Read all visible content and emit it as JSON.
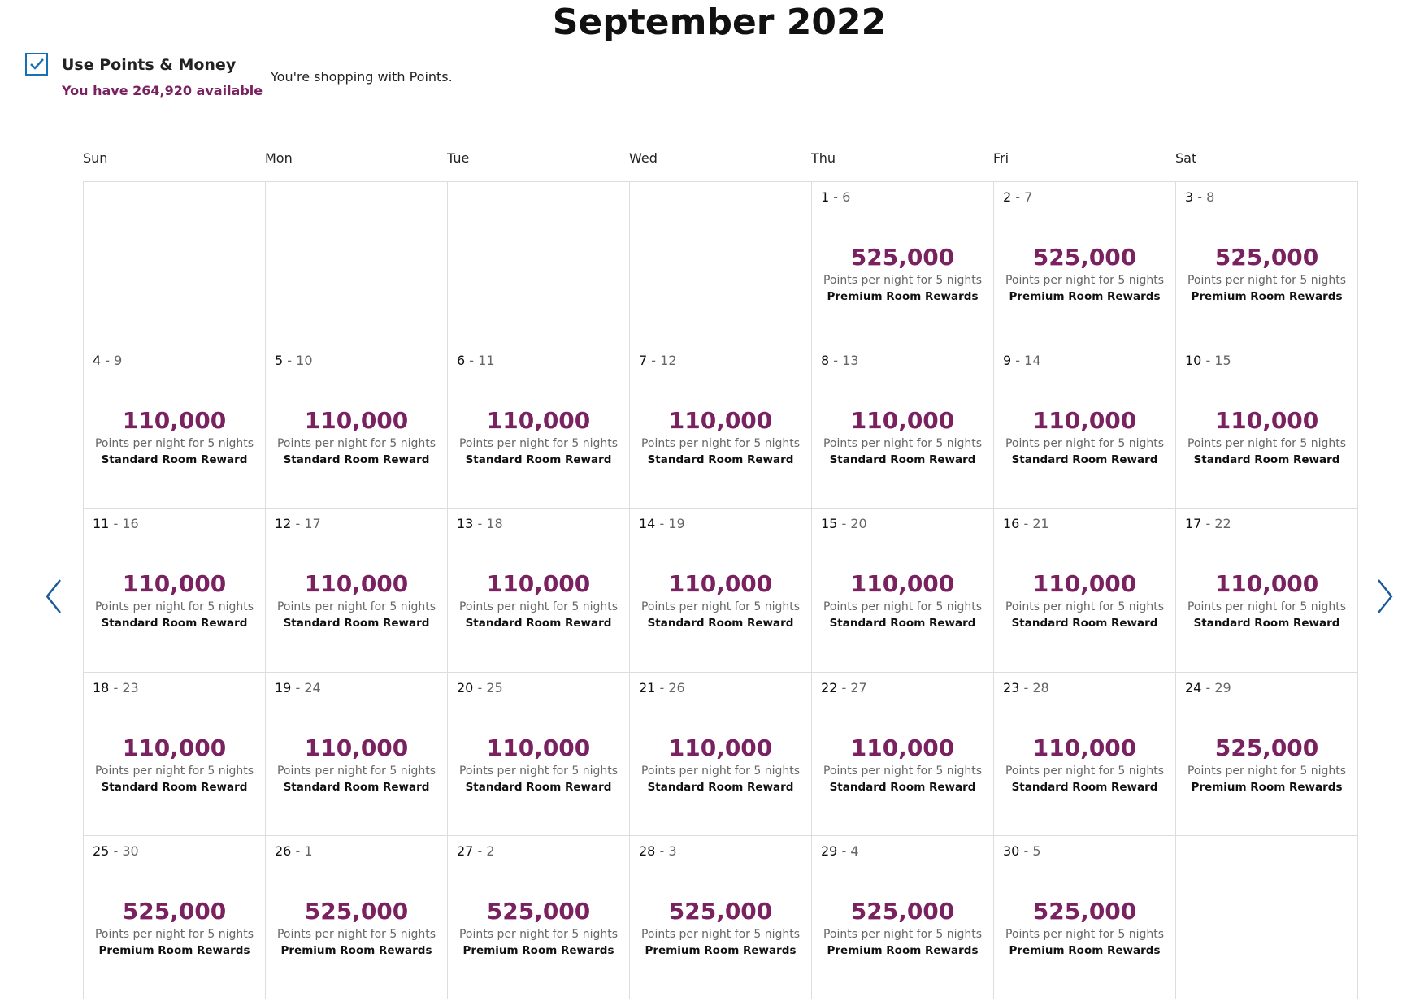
{
  "header": {
    "title": "September 2022",
    "checkbox_label": "Use Points & Money",
    "available": "You have 264,920 available",
    "note": "You're shopping with Points."
  },
  "calendar": {
    "separator": "-",
    "weekdays": [
      "Sun",
      "Mon",
      "Tue",
      "Wed",
      "Thu",
      "Fri",
      "Sat"
    ],
    "weeks": [
      [
        null,
        null,
        null,
        null,
        {
          "start": "1",
          "end": "6",
          "price": "525,000",
          "unit": "Points per night for 5 nights",
          "room": "Premium Room Rewards"
        },
        {
          "start": "2",
          "end": "7",
          "price": "525,000",
          "unit": "Points per night for 5 nights",
          "room": "Premium Room Rewards"
        },
        {
          "start": "3",
          "end": "8",
          "price": "525,000",
          "unit": "Points per night for 5 nights",
          "room": "Premium Room Rewards"
        }
      ],
      [
        {
          "start": "4",
          "end": "9",
          "price": "110,000",
          "unit": "Points per night for 5 nights",
          "room": "Standard Room Reward"
        },
        {
          "start": "5",
          "end": "10",
          "price": "110,000",
          "unit": "Points per night for 5 nights",
          "room": "Standard Room Reward"
        },
        {
          "start": "6",
          "end": "11",
          "price": "110,000",
          "unit": "Points per night for 5 nights",
          "room": "Standard Room Reward"
        },
        {
          "start": "7",
          "end": "12",
          "price": "110,000",
          "unit": "Points per night for 5 nights",
          "room": "Standard Room Reward"
        },
        {
          "start": "8",
          "end": "13",
          "price": "110,000",
          "unit": "Points per night for 5 nights",
          "room": "Standard Room Reward"
        },
        {
          "start": "9",
          "end": "14",
          "price": "110,000",
          "unit": "Points per night for 5 nights",
          "room": "Standard Room Reward"
        },
        {
          "start": "10",
          "end": "15",
          "price": "110,000",
          "unit": "Points per night for 5 nights",
          "room": "Standard Room Reward"
        }
      ],
      [
        {
          "start": "11",
          "end": "16",
          "price": "110,000",
          "unit": "Points per night for 5 nights",
          "room": "Standard Room Reward"
        },
        {
          "start": "12",
          "end": "17",
          "price": "110,000",
          "unit": "Points per night for 5 nights",
          "room": "Standard Room Reward"
        },
        {
          "start": "13",
          "end": "18",
          "price": "110,000",
          "unit": "Points per night for 5 nights",
          "room": "Standard Room Reward"
        },
        {
          "start": "14",
          "end": "19",
          "price": "110,000",
          "unit": "Points per night for 5 nights",
          "room": "Standard Room Reward"
        },
        {
          "start": "15",
          "end": "20",
          "price": "110,000",
          "unit": "Points per night for 5 nights",
          "room": "Standard Room Reward"
        },
        {
          "start": "16",
          "end": "21",
          "price": "110,000",
          "unit": "Points per night for 5 nights",
          "room": "Standard Room Reward"
        },
        {
          "start": "17",
          "end": "22",
          "price": "110,000",
          "unit": "Points per night for 5 nights",
          "room": "Standard Room Reward"
        }
      ],
      [
        {
          "start": "18",
          "end": "23",
          "price": "110,000",
          "unit": "Points per night for 5 nights",
          "room": "Standard Room Reward"
        },
        {
          "start": "19",
          "end": "24",
          "price": "110,000",
          "unit": "Points per night for 5 nights",
          "room": "Standard Room Reward"
        },
        {
          "start": "20",
          "end": "25",
          "price": "110,000",
          "unit": "Points per night for 5 nights",
          "room": "Standard Room Reward"
        },
        {
          "start": "21",
          "end": "26",
          "price": "110,000",
          "unit": "Points per night for 5 nights",
          "room": "Standard Room Reward"
        },
        {
          "start": "22",
          "end": "27",
          "price": "110,000",
          "unit": "Points per night for 5 nights",
          "room": "Standard Room Reward"
        },
        {
          "start": "23",
          "end": "28",
          "price": "110,000",
          "unit": "Points per night for 5 nights",
          "room": "Standard Room Reward"
        },
        {
          "start": "24",
          "end": "29",
          "price": "525,000",
          "unit": "Points per night for 5 nights",
          "room": "Premium Room Rewards"
        }
      ],
      [
        {
          "start": "25",
          "end": "30",
          "price": "525,000",
          "unit": "Points per night for 5 nights",
          "room": "Premium Room Rewards"
        },
        {
          "start": "26",
          "end": "1",
          "price": "525,000",
          "unit": "Points per night for 5 nights",
          "room": "Premium Room Rewards"
        },
        {
          "start": "27",
          "end": "2",
          "price": "525,000",
          "unit": "Points per night for 5 nights",
          "room": "Premium Room Rewards"
        },
        {
          "start": "28",
          "end": "3",
          "price": "525,000",
          "unit": "Points per night for 5 nights",
          "room": "Premium Room Rewards"
        },
        {
          "start": "29",
          "end": "4",
          "price": "525,000",
          "unit": "Points per night for 5 nights",
          "room": "Premium Room Rewards"
        },
        {
          "start": "30",
          "end": "5",
          "price": "525,000",
          "unit": "Points per night for 5 nights",
          "room": "Premium Room Rewards"
        },
        null
      ]
    ]
  }
}
